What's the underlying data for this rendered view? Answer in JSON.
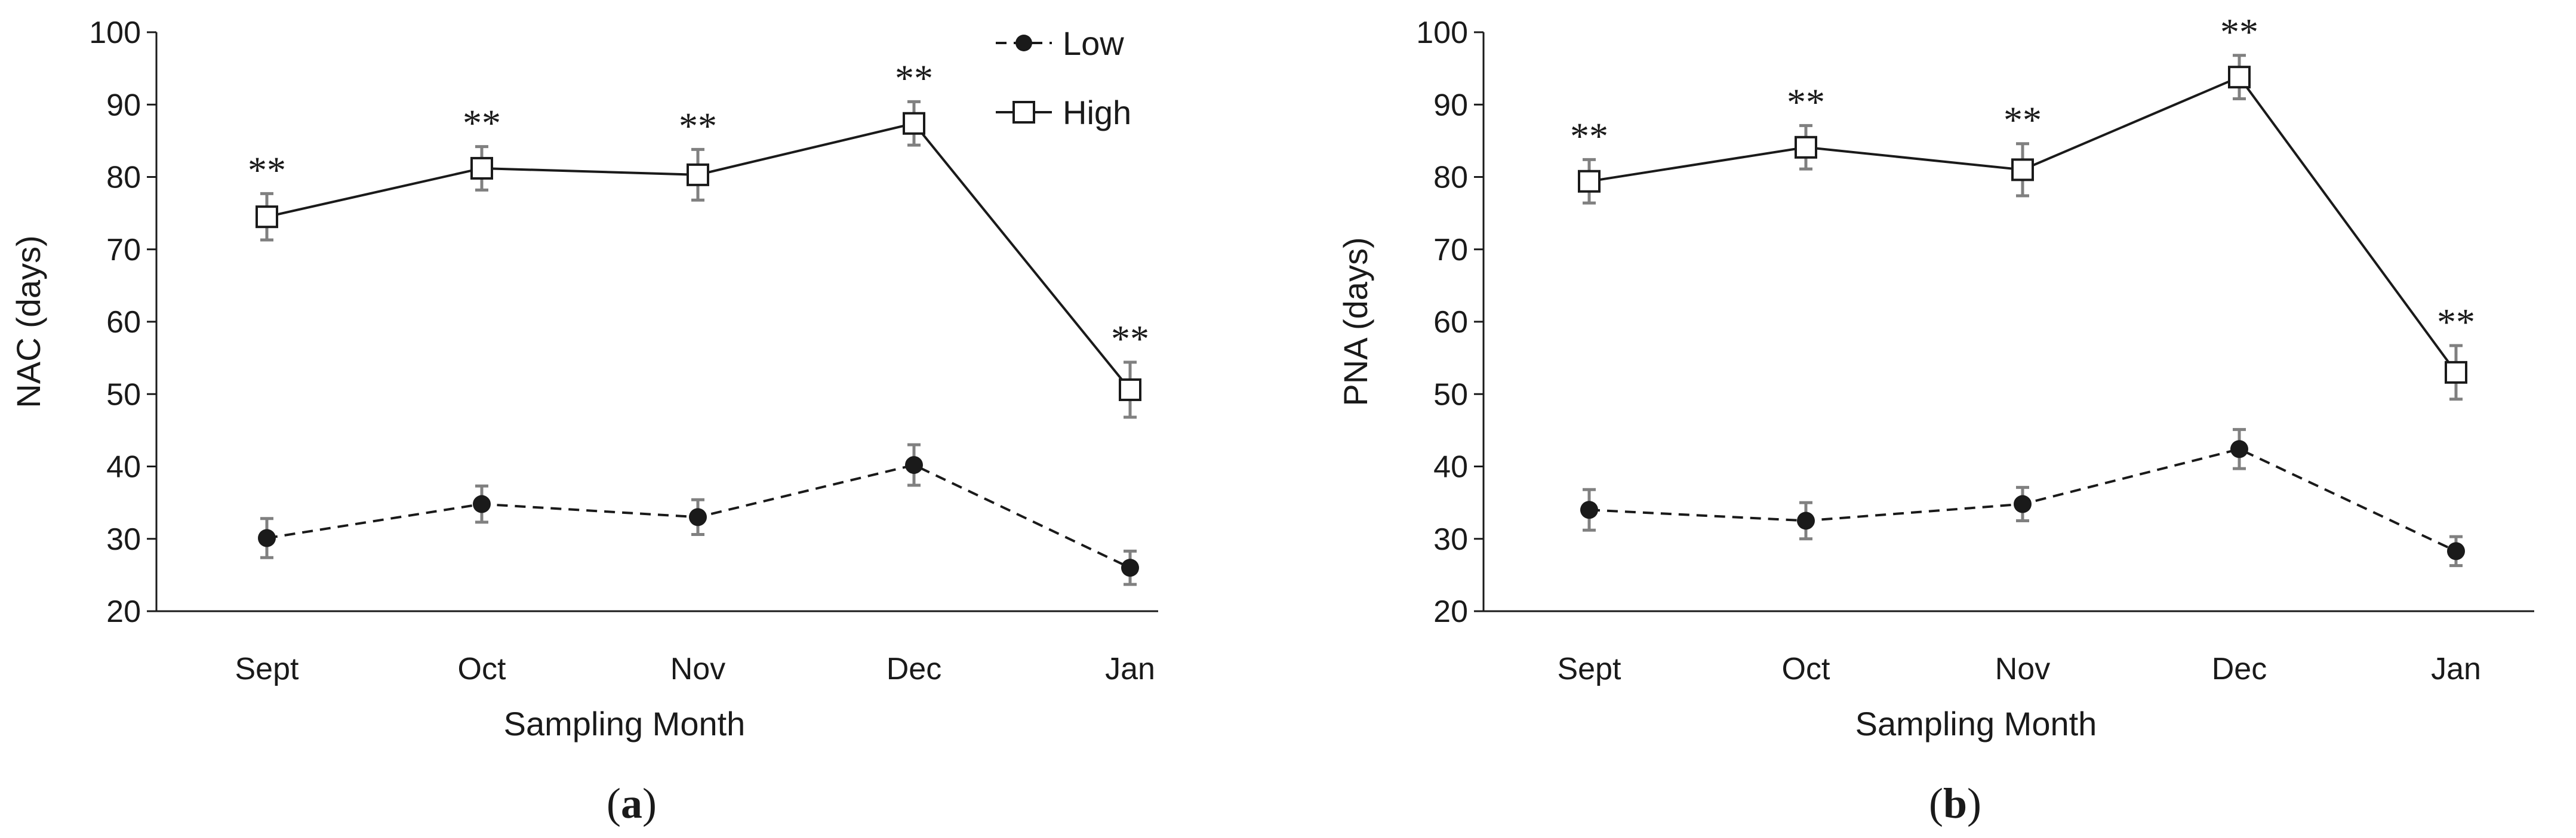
{
  "chart_data": [
    {
      "type": "line",
      "panel_label": "a",
      "ylabel": "NAC (days)",
      "xlabel": "Sampling Month",
      "categories": [
        "Sept",
        "Oct",
        "Nov",
        "Dec",
        "Jan"
      ],
      "ylim": [
        20,
        100
      ],
      "yticks": [
        20,
        30,
        40,
        50,
        60,
        70,
        80,
        90,
        100
      ],
      "legend": {
        "position": "top-right",
        "entries": [
          "Low",
          "High"
        ]
      },
      "series": [
        {
          "name": "Low",
          "style": "dashed-filled-circle",
          "values": [
            30.1,
            34.8,
            33.0,
            40.2,
            26.0
          ],
          "errors": [
            2.7,
            2.5,
            2.4,
            2.8,
            2.3
          ]
        },
        {
          "name": "High",
          "style": "solid-open-square",
          "values": [
            74.5,
            81.2,
            80.3,
            87.4,
            50.6
          ],
          "errors": [
            3.2,
            3.0,
            3.5,
            3.0,
            3.8
          ]
        }
      ],
      "annotations": [
        "**",
        "**",
        "**",
        "**",
        "**"
      ]
    },
    {
      "type": "line",
      "panel_label": "b",
      "ylabel": "PNA (days)",
      "xlabel": "Sampling Month",
      "categories": [
        "Sept",
        "Oct",
        "Nov",
        "Dec",
        "Jan"
      ],
      "ylim": [
        20,
        100
      ],
      "yticks": [
        20,
        30,
        40,
        50,
        60,
        70,
        80,
        90,
        100
      ],
      "series": [
        {
          "name": "Low",
          "style": "dashed-filled-circle",
          "values": [
            34.0,
            32.5,
            34.8,
            42.4,
            28.3
          ],
          "errors": [
            2.8,
            2.5,
            2.3,
            2.7,
            2.0
          ]
        },
        {
          "name": "High",
          "style": "solid-open-square",
          "values": [
            79.4,
            84.1,
            81.0,
            93.8,
            53.0
          ],
          "errors": [
            3.0,
            3.0,
            3.6,
            3.0,
            3.7
          ]
        }
      ],
      "annotations": [
        "**",
        "**",
        "**",
        "**",
        "**"
      ]
    }
  ],
  "colors": {
    "line": "#1a1a1a",
    "errorbar": "#808080",
    "marker_fill_open": "#ffffff"
  }
}
